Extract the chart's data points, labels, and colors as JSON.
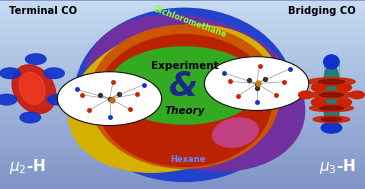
{
  "bg_color_top": "#c8d8ec",
  "bg_color_bottom": "#6080c0",
  "title_left": "Terminal CO",
  "title_right": "Bridging CO",
  "label_dichloromethane": "Dichloromethane",
  "label_hexane": "Hexane",
  "label_experiment": "Experiment",
  "label_ampersand": "&",
  "label_theory": "Theory",
  "blue_ellipse_color": "#2244cc",
  "purple_ellipse_color": "#7030a0",
  "yellow_ellipse_color": "#d4b000",
  "orange_ellipse_color": "#cc5500",
  "red_ellipse_color": "#bb2200",
  "green_circle_color": "#33aa22",
  "text_color_white": "#ffffff",
  "text_color_black": "#000000",
  "text_color_green": "#88ff44",
  "text_color_blue": "#6688ff"
}
